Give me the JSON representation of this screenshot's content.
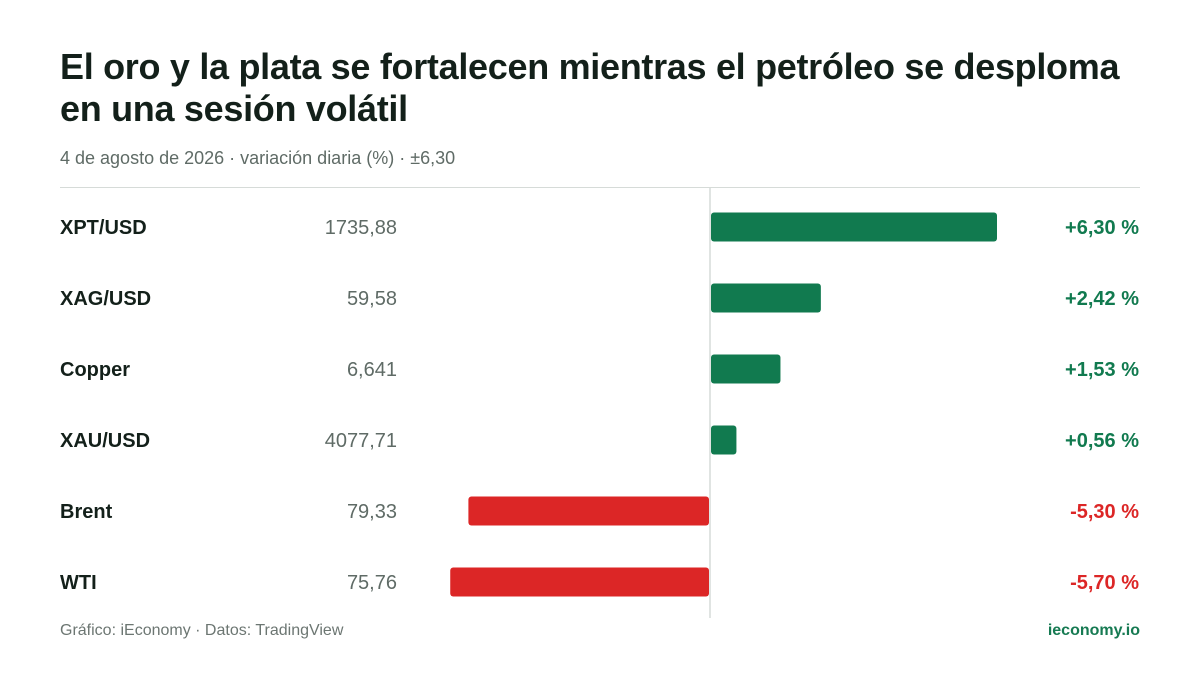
{
  "header": {
    "title": "El oro y la plata se fortalecen mientras el petróleo se desploma en una sesión volátil",
    "subtitle": "4 de agosto de 2026 · variación diaria (%) · ±6,30"
  },
  "footer": {
    "source": "Gráfico: iEconomy · Datos: TradingView",
    "brand": "ieconomy.io"
  },
  "colors": {
    "positive": "#117a4f",
    "negative": "#dc2626",
    "axis": "#d6dbd8",
    "label": "#13201a",
    "price": "#5f6b66"
  },
  "chart_data": {
    "type": "bar",
    "orientation": "horizontal",
    "unit": "%",
    "xlim": [
      -6.3,
      6.3
    ],
    "categories": [
      "XPT/USD",
      "XAG/USD",
      "Copper",
      "XAU/USD",
      "Brent",
      "WTI"
    ],
    "prices": [
      "1735,88",
      "59,58",
      "6,641",
      "4077,71",
      "79,33",
      "75,76"
    ],
    "values": [
      6.3,
      2.42,
      1.53,
      0.56,
      -5.3,
      -5.7
    ],
    "value_labels": [
      "+6,30 %",
      "+2,42 %",
      "+1,53 %",
      "+0,56 %",
      "-5,30 %",
      "-5,70 %"
    ]
  }
}
